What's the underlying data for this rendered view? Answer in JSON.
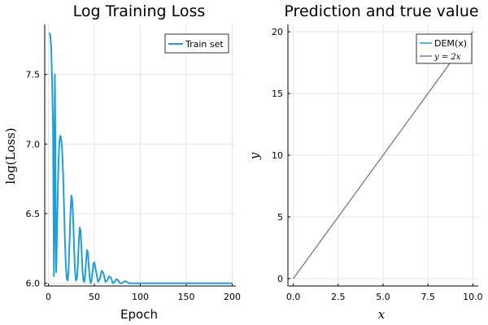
{
  "chart_data": [
    {
      "type": "line",
      "title": "Log Training Loss",
      "xlabel": "Epoch",
      "ylabel": "log(Loss)",
      "xlim": [
        -4,
        204
      ],
      "ylim": [
        5.98,
        7.86
      ],
      "xticks": [
        "0",
        "50",
        "100",
        "150",
        "200"
      ],
      "xtick_values": [
        0,
        50,
        100,
        150,
        200
      ],
      "yticks": [
        "6.0",
        "6.5",
        "7.0",
        "7.5"
      ],
      "ytick_values": [
        6.0,
        6.5,
        7.0,
        7.5
      ],
      "grid": true,
      "legend_position": "top-right",
      "series": [
        {
          "name": "Train set",
          "color": "#1f9ed8",
          "x": [
            1,
            2,
            3,
            4,
            5,
            5.5,
            6,
            6.5,
            7,
            7.5,
            8,
            8.5,
            9,
            10,
            11,
            12,
            13,
            14,
            15,
            16,
            17,
            18,
            19,
            20,
            21,
            22,
            23,
            24,
            25,
            26,
            27,
            28,
            29,
            30,
            31,
            32,
            33,
            34,
            35,
            36,
            37,
            38,
            39,
            40,
            41,
            42,
            43,
            44,
            45,
            46,
            47,
            48,
            49,
            50,
            52,
            54,
            56,
            58,
            60,
            62,
            64,
            66,
            68,
            70,
            72,
            74,
            76,
            78,
            80,
            82,
            84,
            86,
            88,
            90,
            95,
            100,
            110,
            120,
            140,
            160,
            180,
            200
          ],
          "y": [
            7.8,
            7.78,
            7.7,
            7.45,
            7.15,
            6.6,
            6.05,
            6.7,
            7.5,
            7.1,
            6.3,
            6.08,
            6.25,
            6.6,
            6.88,
            7.02,
            7.06,
            7.03,
            6.95,
            6.78,
            6.55,
            6.3,
            6.12,
            6.03,
            6.02,
            6.1,
            6.3,
            6.5,
            6.63,
            6.6,
            6.45,
            6.25,
            6.08,
            6.02,
            6.03,
            6.12,
            6.28,
            6.4,
            6.38,
            6.25,
            6.1,
            6.02,
            6.01,
            6.06,
            6.16,
            6.24,
            6.22,
            6.12,
            6.03,
            6.0,
            6.02,
            6.08,
            6.14,
            6.15,
            6.08,
            6.01,
            6.03,
            6.09,
            6.07,
            6.01,
            6.02,
            6.05,
            6.04,
            6.0,
            6.01,
            6.03,
            6.02,
            6.0,
            6.0,
            6.01,
            6.015,
            6.005,
            6.0,
            6.0,
            6.0,
            6.0,
            6.0,
            6.0,
            6.0,
            6.0,
            6.0,
            6.0
          ]
        }
      ]
    },
    {
      "type": "line",
      "title": "Prediction and true value",
      "xlabel": "x",
      "ylabel": "y",
      "xlim": [
        -0.3,
        10.3
      ],
      "ylim": [
        -0.6,
        20.6
      ],
      "xticks": [
        "0.0",
        "2.5",
        "5.0",
        "7.5",
        "10.0"
      ],
      "xtick_values": [
        0,
        2.5,
        5,
        7.5,
        10
      ],
      "yticks": [
        "0",
        "5",
        "10",
        "15",
        "20"
      ],
      "ytick_values": [
        0,
        5,
        10,
        15,
        20
      ],
      "grid": true,
      "legend_position": "top-right",
      "series": [
        {
          "name": "DEM(x)",
          "color": "#1f9ed8",
          "x": [
            0,
            10
          ],
          "y": [
            0,
            20
          ]
        },
        {
          "name": "y = 2x",
          "color": "#808080",
          "x": [
            0,
            10
          ],
          "y": [
            0,
            20
          ]
        }
      ]
    }
  ]
}
